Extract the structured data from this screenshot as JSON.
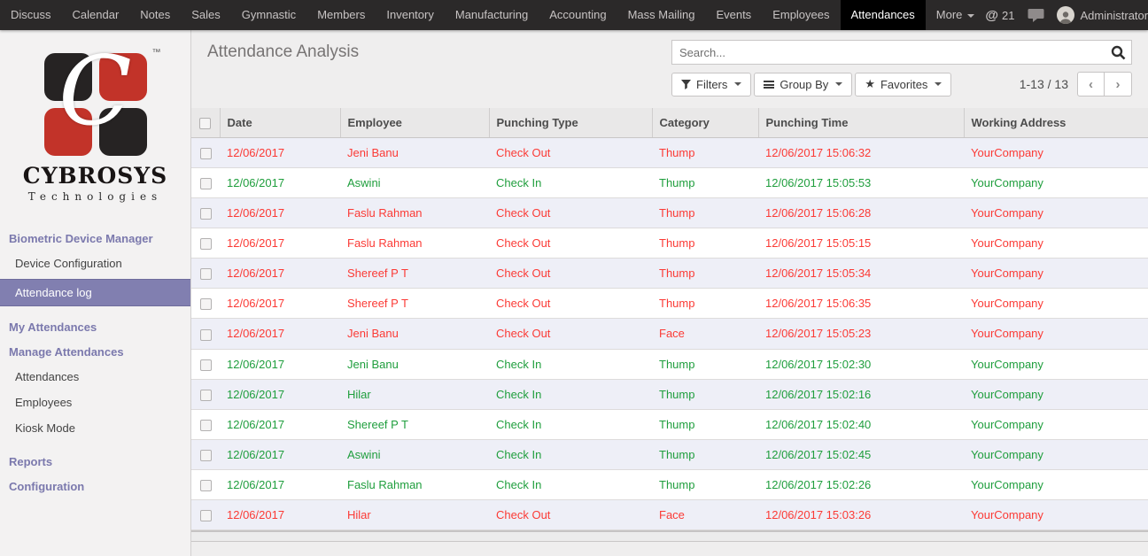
{
  "topnav": {
    "items": [
      {
        "label": "Discuss"
      },
      {
        "label": "Calendar"
      },
      {
        "label": "Notes"
      },
      {
        "label": "Sales"
      },
      {
        "label": "Gymnastic"
      },
      {
        "label": "Members"
      },
      {
        "label": "Inventory"
      },
      {
        "label": "Manufacturing"
      },
      {
        "label": "Accounting"
      },
      {
        "label": "Mass Mailing"
      },
      {
        "label": "Events"
      },
      {
        "label": "Employees"
      },
      {
        "label": "Attendances"
      },
      {
        "label": "More",
        "caret": true
      }
    ],
    "active_item": "Attendances",
    "mention_count": "21",
    "user_name": "Administrator"
  },
  "sidebar": {
    "logo": {
      "letter": "C",
      "tm": "™",
      "brand": "CYBROSYS",
      "sub": "Technologies"
    },
    "sections": [
      {
        "type": "header",
        "label": "Biometric Device Manager"
      },
      {
        "type": "item",
        "label": "Device Configuration"
      },
      {
        "type": "item",
        "label": "Attendance log",
        "selected": true
      },
      {
        "type": "header",
        "label": "My Attendances",
        "gap": true
      },
      {
        "type": "header",
        "label": "Manage Attendances"
      },
      {
        "type": "item",
        "label": "Attendances"
      },
      {
        "type": "item",
        "label": "Employees"
      },
      {
        "type": "item",
        "label": "Kiosk Mode"
      },
      {
        "type": "header",
        "label": "Reports",
        "gap": true
      },
      {
        "type": "header",
        "label": "Configuration"
      }
    ]
  },
  "content": {
    "title": "Attendance Analysis",
    "search_placeholder": "Search...",
    "controls": {
      "filters": "Filters",
      "group_by": "Group By",
      "favorites": "Favorites"
    },
    "pager": {
      "range": "1-13 / 13"
    }
  },
  "table": {
    "columns": [
      "Date",
      "Employee",
      "Punching Type",
      "Category",
      "Punching Time",
      "Working Address"
    ],
    "rows": [
      {
        "date": "12/06/2017",
        "employee": "Jeni Banu",
        "punching_type": "Check Out",
        "category": "Thump",
        "punching_time": "12/06/2017 15:06:32",
        "working_address": "YourCompany",
        "status": "out"
      },
      {
        "date": "12/06/2017",
        "employee": "Aswini",
        "punching_type": "Check In",
        "category": "Thump",
        "punching_time": "12/06/2017 15:05:53",
        "working_address": "YourCompany",
        "status": "in"
      },
      {
        "date": "12/06/2017",
        "employee": "Faslu Rahman",
        "punching_type": "Check Out",
        "category": "Thump",
        "punching_time": "12/06/2017 15:06:28",
        "working_address": "YourCompany",
        "status": "out"
      },
      {
        "date": "12/06/2017",
        "employee": "Faslu Rahman",
        "punching_type": "Check Out",
        "category": "Thump",
        "punching_time": "12/06/2017 15:05:15",
        "working_address": "YourCompany",
        "status": "out"
      },
      {
        "date": "12/06/2017",
        "employee": "Shereef P T",
        "punching_type": "Check Out",
        "category": "Thump",
        "punching_time": "12/06/2017 15:05:34",
        "working_address": "YourCompany",
        "status": "out"
      },
      {
        "date": "12/06/2017",
        "employee": "Shereef P T",
        "punching_type": "Check Out",
        "category": "Thump",
        "punching_time": "12/06/2017 15:06:35",
        "working_address": "YourCompany",
        "status": "out"
      },
      {
        "date": "12/06/2017",
        "employee": "Jeni Banu",
        "punching_type": "Check Out",
        "category": "Face",
        "punching_time": "12/06/2017 15:05:23",
        "working_address": "YourCompany",
        "status": "out"
      },
      {
        "date": "12/06/2017",
        "employee": "Jeni Banu",
        "punching_type": "Check In",
        "category": "Thump",
        "punching_time": "12/06/2017 15:02:30",
        "working_address": "YourCompany",
        "status": "in"
      },
      {
        "date": "12/06/2017",
        "employee": "Hilar",
        "punching_type": "Check In",
        "category": "Thump",
        "punching_time": "12/06/2017 15:02:16",
        "working_address": "YourCompany",
        "status": "in"
      },
      {
        "date": "12/06/2017",
        "employee": "Shereef P T",
        "punching_type": "Check In",
        "category": "Thump",
        "punching_time": "12/06/2017 15:02:40",
        "working_address": "YourCompany",
        "status": "in"
      },
      {
        "date": "12/06/2017",
        "employee": "Aswini",
        "punching_type": "Check In",
        "category": "Thump",
        "punching_time": "12/06/2017 15:02:45",
        "working_address": "YourCompany",
        "status": "in"
      },
      {
        "date": "12/06/2017",
        "employee": "Faslu Rahman",
        "punching_type": "Check In",
        "category": "Thump",
        "punching_time": "12/06/2017 15:02:26",
        "working_address": "YourCompany",
        "status": "in"
      },
      {
        "date": "12/06/2017",
        "employee": "Hilar",
        "punching_type": "Check Out",
        "category": "Face",
        "punching_time": "12/06/2017 15:03:26",
        "working_address": "YourCompany",
        "status": "out"
      }
    ]
  },
  "colors": {
    "accent": "#7b79ad",
    "danger": "#fb3a35",
    "success": "#1f9e3d",
    "navbar": "#2b2929"
  }
}
